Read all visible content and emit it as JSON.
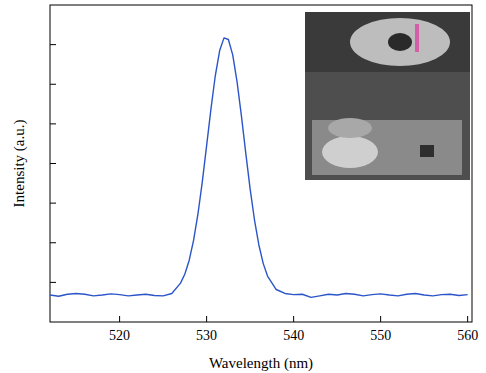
{
  "chart_data": {
    "type": "line",
    "x_label": "Wavelength (nm)",
    "y_label": "Intensity (a.u.)",
    "xlim": [
      512,
      560.5
    ],
    "ylim": [
      0,
      8
    ],
    "xticks": [
      520,
      530,
      540,
      550,
      560
    ],
    "yticks": [
      1,
      2,
      3,
      4,
      5,
      6,
      7
    ],
    "tick_labels": "x",
    "grid": false,
    "color": "#2b55c8",
    "x": [
      512,
      513,
      514,
      515,
      516,
      517,
      518,
      519,
      520,
      521,
      522,
      523,
      524,
      525,
      526,
      527,
      527.5,
      528,
      528.5,
      529,
      529.5,
      530,
      530.5,
      531,
      531.5,
      532,
      532.5,
      533,
      533.5,
      534,
      534.5,
      535,
      535.5,
      536,
      536.5,
      537,
      538,
      539,
      540,
      541,
      542,
      543,
      544,
      545,
      546,
      547,
      548,
      549,
      550,
      551,
      552,
      553,
      554,
      555,
      556,
      557,
      558,
      559,
      560
    ],
    "values": [
      0.68,
      0.65,
      0.7,
      0.72,
      0.7,
      0.66,
      0.68,
      0.71,
      0.69,
      0.66,
      0.68,
      0.7,
      0.67,
      0.66,
      0.72,
      0.98,
      1.21,
      1.56,
      2.06,
      2.72,
      3.53,
      4.45,
      5.38,
      6.22,
      6.85,
      7.17,
      7.13,
      6.74,
      6.06,
      5.2,
      4.26,
      3.36,
      2.58,
      1.95,
      1.48,
      1.16,
      0.82,
      0.72,
      0.69,
      0.7,
      0.62,
      0.66,
      0.7,
      0.68,
      0.72,
      0.7,
      0.66,
      0.69,
      0.71,
      0.68,
      0.66,
      0.7,
      0.72,
      0.68,
      0.66,
      0.69,
      0.7,
      0.67,
      0.69
    ]
  }
}
